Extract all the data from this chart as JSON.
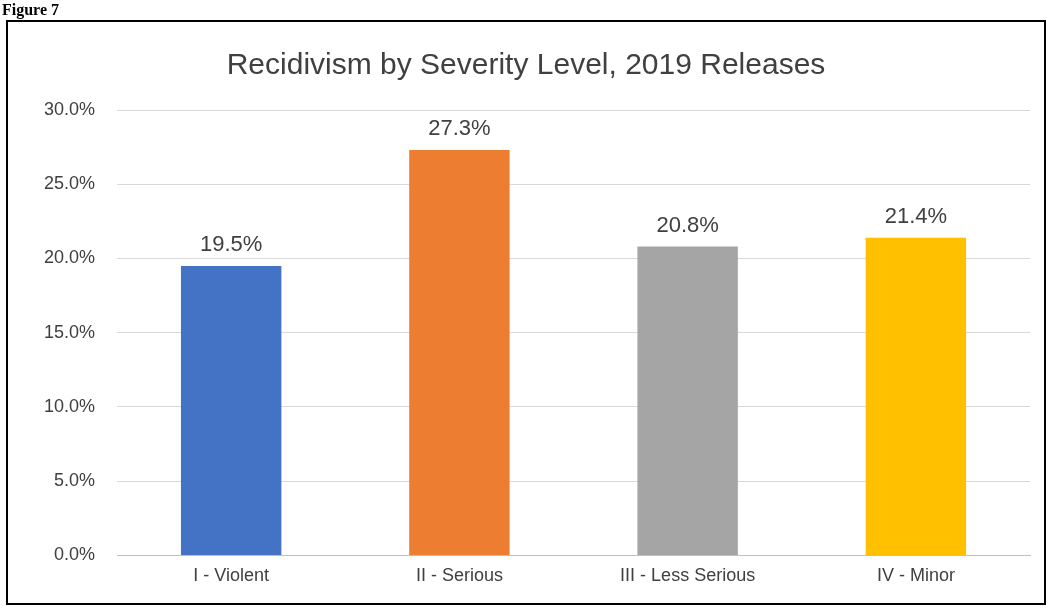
{
  "chart_data": {
    "type": "bar",
    "title": "Recidivism by Severity Level, 2019 Releases",
    "annotations": [
      "Figure 7"
    ],
    "categories": [
      "I - Violent",
      "II - Serious",
      "III - Less Serious",
      "IV - Minor"
    ],
    "values": [
      19.5,
      27.3,
      20.8,
      21.4
    ],
    "colors": [
      "#4472c4",
      "#ed7d31",
      "#a5a5a5",
      "#ffc000"
    ],
    "value_labels": [
      "19.5%",
      "27.3%",
      "20.8%",
      "21.4%"
    ],
    "ylim": [
      0,
      30
    ],
    "yticks": [
      {
        "value": 0,
        "label": "0.0%"
      },
      {
        "value": 5,
        "label": "5.0%"
      },
      {
        "value": 10,
        "label": "10.0%"
      },
      {
        "value": 15,
        "label": "15.0%"
      },
      {
        "value": 20,
        "label": "20.0%"
      },
      {
        "value": 25,
        "label": "25.0%"
      },
      {
        "value": 30,
        "label": "30.0%"
      }
    ],
    "grid": "y",
    "legend": false
  }
}
